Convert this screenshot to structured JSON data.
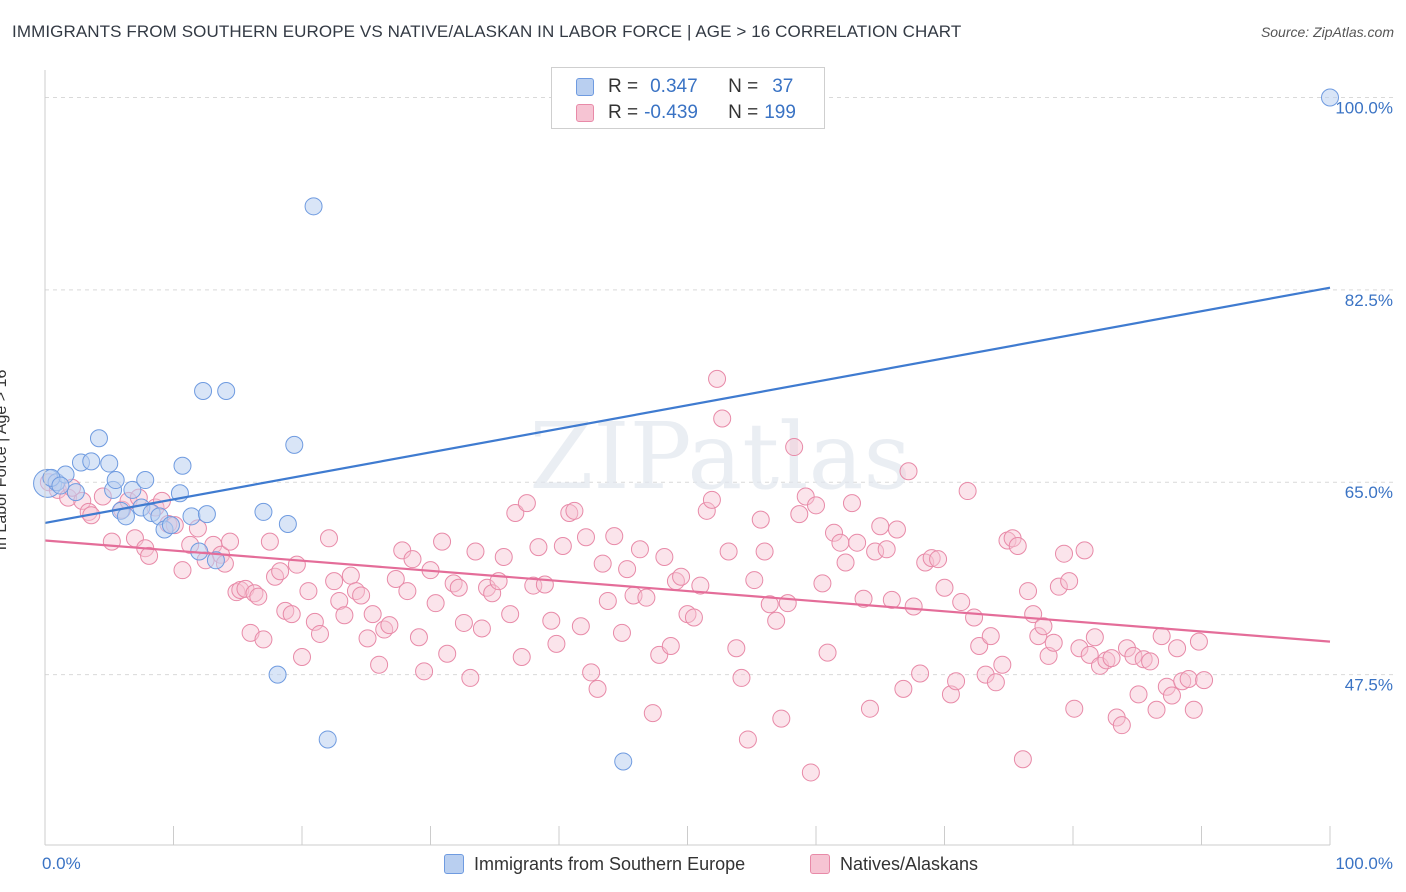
{
  "title": "IMMIGRANTS FROM SOUTHERN EUROPE VS NATIVE/ALASKAN IN LABOR FORCE | AGE > 16 CORRELATION CHART",
  "source": "Source: ZipAtlas.com",
  "watermark": "ZIPatlas",
  "legend_top": {
    "rows": [
      {
        "r_label": "R =",
        "r_value": "0.347",
        "n_label": "N =",
        "n_value": "37"
      },
      {
        "r_label": "R =",
        "r_value": "-0.439",
        "n_label": "N =",
        "n_value": "199"
      }
    ]
  },
  "colors": {
    "blue_fill": "#b9cff0",
    "blue_stroke": "#6f9be0",
    "blue_line": "#3f7bd0",
    "pink_fill": "#f6c4d3",
    "pink_stroke": "#e88aa8",
    "pink_line": "#e46d99",
    "grid": "#d9d9d9",
    "tick_label": "#3a73c4"
  },
  "chart_data": {
    "type": "scatter",
    "title": "IMMIGRANTS FROM SOUTHERN EUROPE VS NATIVE/ALASKAN IN LABOR FORCE | AGE > 16 CORRELATION CHART",
    "xlabel": "",
    "ylabel": "In Labor Force | Age > 16",
    "xlim": [
      0,
      100
    ],
    "ylim": [
      32,
      101.5
    ],
    "x_tick_labels": [
      "0.0%",
      "100.0%"
    ],
    "y_ticks": [
      47.5,
      65.0,
      82.5,
      100.0
    ],
    "y_tick_labels": [
      "47.5%",
      "65.0%",
      "82.5%",
      "100.0%"
    ],
    "grid": true,
    "legend_position": "top-center",
    "series": [
      {
        "name": "Immigrants from Southern Europe",
        "r": 0.347,
        "n": 37,
        "trend": [
          [
            0,
            61.3
          ],
          [
            100,
            82.7
          ]
        ],
        "points": [
          [
            0.2,
            64.9
          ],
          [
            0.9,
            65.0
          ],
          [
            1.6,
            65.7
          ],
          [
            2.4,
            64.1
          ],
          [
            2.8,
            66.8
          ],
          [
            3.6,
            66.9
          ],
          [
            4.2,
            69.0
          ],
          [
            5.0,
            66.7
          ],
          [
            5.3,
            64.3
          ],
          [
            5.5,
            65.2
          ],
          [
            5.9,
            62.4
          ],
          [
            6.3,
            61.9
          ],
          [
            6.8,
            64.3
          ],
          [
            7.5,
            62.7
          ],
          [
            7.8,
            65.2
          ],
          [
            8.3,
            62.2
          ],
          [
            8.9,
            61.9
          ],
          [
            9.3,
            60.7
          ],
          [
            9.8,
            61.1
          ],
          [
            10.5,
            64.0
          ],
          [
            10.7,
            66.5
          ],
          [
            11.4,
            61.9
          ],
          [
            12.0,
            58.7
          ],
          [
            12.3,
            73.3
          ],
          [
            12.6,
            62.1
          ],
          [
            13.3,
            57.9
          ],
          [
            14.1,
            73.3
          ],
          [
            17.0,
            62.3
          ],
          [
            18.1,
            47.5
          ],
          [
            18.9,
            61.2
          ],
          [
            19.4,
            68.4
          ],
          [
            20.9,
            90.1
          ],
          [
            22.0,
            41.6
          ],
          [
            45.0,
            39.6
          ],
          [
            100.0,
            100.0
          ],
          [
            0.5,
            65.4
          ],
          [
            1.2,
            64.7
          ]
        ]
      },
      {
        "name": "Natives/Alaskans",
        "r": -0.439,
        "n": 199,
        "trend": [
          [
            0,
            59.7
          ],
          [
            100,
            50.5
          ]
        ],
        "points": [
          [
            0.3,
            65.0
          ],
          [
            1.0,
            64.3
          ],
          [
            1.8,
            63.6
          ],
          [
            2.1,
            64.5
          ],
          [
            2.9,
            63.3
          ],
          [
            3.4,
            62.3
          ],
          [
            3.6,
            62.0
          ],
          [
            4.5,
            63.7
          ],
          [
            5.2,
            59.6
          ],
          [
            6.0,
            62.5
          ],
          [
            6.5,
            63.3
          ],
          [
            7.0,
            59.9
          ],
          [
            7.3,
            63.6
          ],
          [
            7.8,
            59.0
          ],
          [
            8.1,
            58.3
          ],
          [
            8.6,
            62.7
          ],
          [
            9.1,
            63.3
          ],
          [
            9.6,
            61.2
          ],
          [
            10.1,
            61.1
          ],
          [
            10.7,
            57.0
          ],
          [
            11.3,
            59.3
          ],
          [
            11.9,
            60.8
          ],
          [
            12.5,
            57.9
          ],
          [
            13.1,
            59.3
          ],
          [
            13.7,
            58.4
          ],
          [
            14.0,
            57.6
          ],
          [
            14.4,
            59.6
          ],
          [
            14.9,
            55.0
          ],
          [
            15.2,
            55.2
          ],
          [
            15.6,
            55.3
          ],
          [
            16.0,
            51.3
          ],
          [
            16.3,
            54.9
          ],
          [
            16.6,
            54.6
          ],
          [
            17.0,
            50.7
          ],
          [
            17.5,
            59.6
          ],
          [
            17.9,
            56.4
          ],
          [
            18.3,
            56.9
          ],
          [
            18.7,
            53.3
          ],
          [
            19.2,
            53.0
          ],
          [
            19.6,
            57.5
          ],
          [
            20.0,
            49.1
          ],
          [
            20.5,
            55.1
          ],
          [
            21.0,
            52.3
          ],
          [
            21.4,
            51.2
          ],
          [
            22.1,
            59.9
          ],
          [
            22.5,
            56.0
          ],
          [
            22.9,
            54.2
          ],
          [
            23.3,
            52.9
          ],
          [
            23.8,
            56.5
          ],
          [
            24.2,
            55.1
          ],
          [
            24.6,
            54.7
          ],
          [
            25.1,
            50.8
          ],
          [
            25.5,
            53.0
          ],
          [
            26.0,
            48.4
          ],
          [
            26.4,
            51.6
          ],
          [
            26.8,
            52.0
          ],
          [
            27.3,
            56.2
          ],
          [
            27.8,
            58.8
          ],
          [
            28.2,
            55.1
          ],
          [
            28.6,
            58.0
          ],
          [
            29.1,
            50.9
          ],
          [
            29.5,
            47.8
          ],
          [
            30.0,
            57.0
          ],
          [
            30.4,
            54.0
          ],
          [
            30.9,
            59.6
          ],
          [
            31.3,
            49.4
          ],
          [
            31.8,
            55.8
          ],
          [
            32.2,
            55.4
          ],
          [
            32.6,
            52.2
          ],
          [
            33.1,
            47.2
          ],
          [
            33.5,
            58.7
          ],
          [
            34.0,
            51.7
          ],
          [
            34.4,
            55.4
          ],
          [
            34.8,
            54.9
          ],
          [
            35.3,
            56.0
          ],
          [
            35.7,
            58.2
          ],
          [
            36.2,
            53.0
          ],
          [
            36.6,
            62.2
          ],
          [
            37.1,
            49.1
          ],
          [
            37.5,
            63.1
          ],
          [
            38.0,
            55.6
          ],
          [
            38.4,
            59.1
          ],
          [
            38.9,
            55.7
          ],
          [
            39.4,
            52.4
          ],
          [
            39.8,
            50.3
          ],
          [
            40.3,
            59.2
          ],
          [
            40.8,
            62.2
          ],
          [
            41.2,
            62.4
          ],
          [
            41.7,
            51.9
          ],
          [
            42.1,
            60.0
          ],
          [
            42.5,
            47.7
          ],
          [
            43.0,
            46.2
          ],
          [
            43.4,
            57.6
          ],
          [
            43.8,
            54.2
          ],
          [
            44.3,
            60.1
          ],
          [
            44.9,
            51.3
          ],
          [
            45.3,
            57.1
          ],
          [
            45.8,
            54.7
          ],
          [
            46.3,
            58.9
          ],
          [
            46.8,
            54.5
          ],
          [
            47.3,
            44.0
          ],
          [
            47.8,
            49.3
          ],
          [
            48.2,
            58.2
          ],
          [
            48.7,
            50.1
          ],
          [
            49.1,
            56.0
          ],
          [
            49.5,
            56.4
          ],
          [
            50.0,
            53.0
          ],
          [
            50.5,
            52.7
          ],
          [
            51.0,
            55.6
          ],
          [
            51.5,
            62.4
          ],
          [
            51.9,
            63.4
          ],
          [
            52.3,
            74.4
          ],
          [
            52.7,
            70.8
          ],
          [
            53.2,
            58.7
          ],
          [
            53.8,
            49.9
          ],
          [
            54.2,
            47.2
          ],
          [
            54.7,
            41.6
          ],
          [
            55.2,
            56.1
          ],
          [
            55.7,
            61.6
          ],
          [
            56.0,
            58.7
          ],
          [
            56.4,
            53.9
          ],
          [
            56.9,
            52.4
          ],
          [
            57.3,
            43.5
          ],
          [
            57.8,
            54.0
          ],
          [
            58.3,
            68.2
          ],
          [
            58.7,
            62.1
          ],
          [
            59.2,
            63.7
          ],
          [
            59.6,
            38.6
          ],
          [
            60.0,
            62.9
          ],
          [
            60.5,
            55.8
          ],
          [
            60.9,
            49.5
          ],
          [
            61.4,
            60.4
          ],
          [
            61.9,
            59.5
          ],
          [
            62.3,
            57.7
          ],
          [
            62.8,
            63.1
          ],
          [
            63.2,
            59.5
          ],
          [
            63.7,
            54.4
          ],
          [
            64.2,
            44.4
          ],
          [
            64.6,
            58.7
          ],
          [
            65.0,
            61.0
          ],
          [
            65.5,
            58.9
          ],
          [
            65.9,
            54.3
          ],
          [
            66.3,
            60.7
          ],
          [
            66.8,
            46.2
          ],
          [
            67.2,
            66.0
          ],
          [
            67.6,
            53.7
          ],
          [
            68.1,
            47.6
          ],
          [
            68.5,
            57.7
          ],
          [
            69.0,
            58.1
          ],
          [
            69.5,
            58.0
          ],
          [
            70.0,
            55.4
          ],
          [
            70.5,
            45.7
          ],
          [
            70.9,
            46.9
          ],
          [
            71.3,
            54.1
          ],
          [
            71.8,
            64.2
          ],
          [
            72.3,
            52.7
          ],
          [
            72.7,
            50.1
          ],
          [
            73.2,
            47.5
          ],
          [
            73.6,
            51.0
          ],
          [
            74.0,
            46.8
          ],
          [
            74.5,
            48.4
          ],
          [
            74.9,
            59.7
          ],
          [
            75.3,
            59.9
          ],
          [
            75.7,
            59.2
          ],
          [
            76.1,
            39.8
          ],
          [
            76.5,
            55.1
          ],
          [
            76.9,
            53.0
          ],
          [
            77.3,
            51.0
          ],
          [
            77.7,
            51.9
          ],
          [
            78.1,
            49.2
          ],
          [
            78.5,
            50.4
          ],
          [
            78.9,
            55.5
          ],
          [
            79.3,
            58.5
          ],
          [
            79.7,
            56.0
          ],
          [
            80.1,
            44.4
          ],
          [
            80.5,
            49.9
          ],
          [
            80.9,
            58.8
          ],
          [
            81.3,
            49.3
          ],
          [
            81.7,
            50.9
          ],
          [
            82.1,
            48.3
          ],
          [
            82.6,
            48.8
          ],
          [
            83.0,
            49.0
          ],
          [
            83.4,
            43.6
          ],
          [
            83.8,
            42.9
          ],
          [
            84.2,
            49.9
          ],
          [
            84.7,
            49.2
          ],
          [
            85.1,
            45.7
          ],
          [
            85.5,
            48.9
          ],
          [
            86.0,
            48.7
          ],
          [
            86.5,
            44.3
          ],
          [
            86.9,
            51.0
          ],
          [
            87.3,
            46.4
          ],
          [
            87.7,
            45.6
          ],
          [
            88.1,
            49.9
          ],
          [
            88.5,
            46.9
          ],
          [
            89.0,
            47.1
          ],
          [
            89.4,
            44.3
          ],
          [
            89.8,
            50.5
          ],
          [
            90.2,
            47.0
          ]
        ]
      }
    ]
  },
  "bottom_legend": [
    {
      "label": "Immigrants from Southern Europe"
    },
    {
      "label": "Natives/Alaskans"
    }
  ]
}
